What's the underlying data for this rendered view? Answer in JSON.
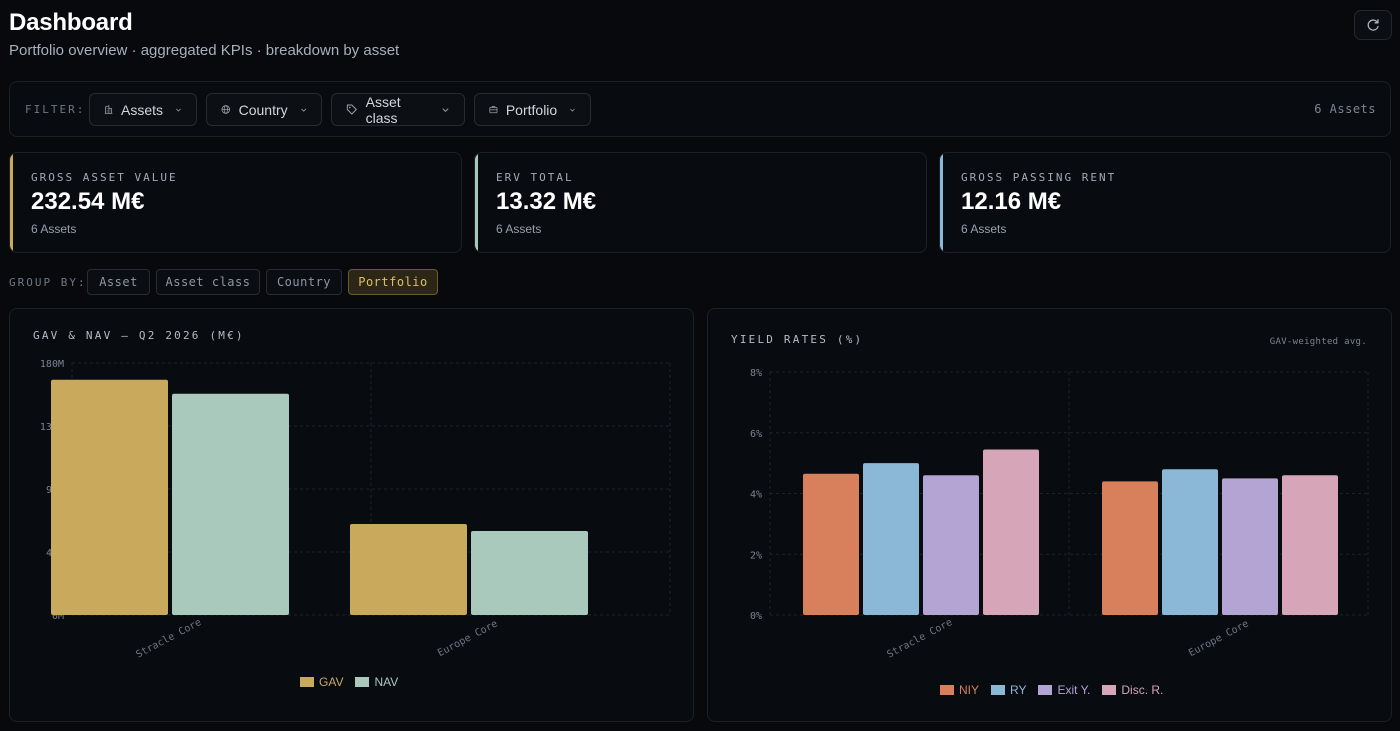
{
  "header": {
    "title": "Dashboard",
    "subtitle": "Portfolio overview · aggregated KPIs · breakdown by asset"
  },
  "filter": {
    "label": "FILTER:",
    "chips": [
      {
        "label": "Assets",
        "icon": "building-icon"
      },
      {
        "label": "Country",
        "icon": "globe-icon"
      },
      {
        "label": "Asset class",
        "icon": "tag-icon"
      },
      {
        "label": "Portfolio",
        "icon": "briefcase-icon"
      }
    ],
    "count": "6 Assets"
  },
  "kpis": [
    {
      "label": "GROSS ASSET VALUE",
      "value": "232.54 M€",
      "sub": "6 Assets",
      "accent": "#c9a95c"
    },
    {
      "label": "ERV TOTAL",
      "value": "13.32 M€",
      "sub": "6 Assets",
      "accent": "#a9c9b8"
    },
    {
      "label": "GROSS PASSING RENT",
      "value": "12.16 M€",
      "sub": "6 Assets",
      "accent": "#8db9d8"
    }
  ],
  "group_by": {
    "label": "GROUP BY:",
    "options": [
      "Asset",
      "Asset class",
      "Country",
      "Portfolio"
    ],
    "active": "Portfolio"
  },
  "chart_data": [
    {
      "type": "bar",
      "title": "GAV & NAV — Q2 2026 (M€)",
      "categories": [
        "Stracle Core",
        "Europe Core"
      ],
      "series": [
        {
          "name": "GAV",
          "values": [
            168,
            65
          ],
          "color": "#c9a95c"
        },
        {
          "name": "NAV",
          "values": [
            158,
            60
          ],
          "color": "#a9c9bd"
        }
      ],
      "ylim": [
        0,
        180
      ],
      "yticks": [
        "0M",
        "45M",
        "90M",
        "135M",
        "180M"
      ],
      "grid": true,
      "legend": "bottom"
    },
    {
      "type": "bar",
      "title": "YIELD RATES (%)",
      "note": "GAV-weighted avg.",
      "categories": [
        "Stracle Core",
        "Europe Core"
      ],
      "series": [
        {
          "name": "NIY",
          "values": [
            4.65,
            4.4
          ],
          "color": "#d8805c"
        },
        {
          "name": "RY",
          "values": [
            5.0,
            4.8
          ],
          "color": "#8bb8d6"
        },
        {
          "name": "Exit Y.",
          "values": [
            4.6,
            4.5
          ],
          "color": "#b3a4d4"
        },
        {
          "name": "Disc. R.",
          "values": [
            5.45,
            4.6
          ],
          "color": "#d6a6b8"
        }
      ],
      "ylim": [
        0,
        8
      ],
      "yticks": [
        "0%",
        "2%",
        "4%",
        "6%",
        "8%"
      ],
      "grid": true,
      "legend": "bottom"
    }
  ]
}
